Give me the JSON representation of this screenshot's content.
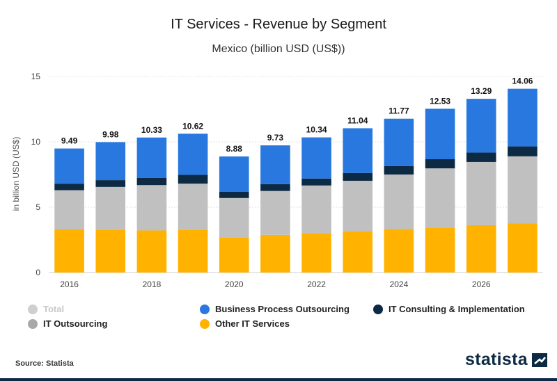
{
  "chart_data": {
    "type": "bar",
    "stacked": true,
    "title": "IT Services - Revenue by Segment",
    "subtitle": "Mexico (billion USD (US$))",
    "ylabel": "in billion USD (US$)",
    "xlabel": "",
    "ylim": [
      0,
      15
    ],
    "yticks": [
      0,
      5,
      10,
      15
    ],
    "grid": true,
    "categories": [
      "2016",
      "2017",
      "2018",
      "2019",
      "2020",
      "2021",
      "2022",
      "2023",
      "2024",
      "2025",
      "2026",
      "2027"
    ],
    "x_tick_labels": [
      "2016",
      "",
      "2018",
      "",
      "2020",
      "",
      "2022",
      "",
      "2024",
      "",
      "2026",
      ""
    ],
    "series": [
      {
        "name": "Other IT Services",
        "color": "#ffb300",
        "values": [
          3.3,
          3.28,
          3.22,
          3.28,
          2.68,
          2.88,
          2.98,
          3.17,
          3.32,
          3.44,
          3.62,
          3.75
        ]
      },
      {
        "name": "IT Outsourcing",
        "color": "#c0c0c0",
        "values": [
          3.0,
          3.27,
          3.47,
          3.52,
          3.02,
          3.36,
          3.68,
          3.85,
          4.18,
          4.53,
          4.84,
          5.14
        ]
      },
      {
        "name": "IT Consulting & Implementation",
        "color": "#0d2a45",
        "values": [
          0.5,
          0.52,
          0.56,
          0.68,
          0.47,
          0.52,
          0.53,
          0.6,
          0.65,
          0.7,
          0.72,
          0.76
        ]
      },
      {
        "name": "Business Process Outsourcing",
        "color": "#2878e0",
        "values": [
          2.69,
          2.91,
          3.08,
          3.14,
          2.71,
          2.97,
          3.15,
          3.42,
          3.62,
          3.86,
          4.11,
          4.41
        ]
      }
    ],
    "totals": [
      "9.49",
      "9.98",
      "10.33",
      "10.62",
      "8.88",
      "9.73",
      "10.34",
      "11.04",
      "11.77",
      "12.53",
      "13.29",
      "14.06"
    ]
  },
  "legend": {
    "total": {
      "label": "Total",
      "color": "#cfcfcf"
    },
    "bpo": {
      "label": "Business Process Outsourcing",
      "color": "#2878e0"
    },
    "consulting": {
      "label": "IT Consulting & Implementation",
      "color": "#0d2a45"
    },
    "outsourcing": {
      "label": "IT Outsourcing",
      "color": "#a8a8a8"
    },
    "other": {
      "label": "Other IT Services",
      "color": "#ffb300"
    }
  },
  "footer": {
    "source": "Source: Statista",
    "brand": "statista"
  }
}
